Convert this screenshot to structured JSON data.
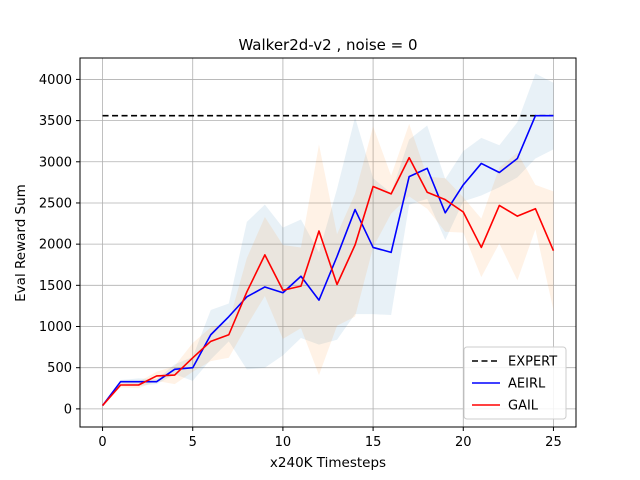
{
  "chart_data": {
    "type": "line",
    "title": "Walker2d-v2 , noise = 0",
    "xlabel": "x240K Timesteps",
    "ylabel": "Eval Reward Sum",
    "xlim": [
      -1.25,
      26.25
    ],
    "ylim": [
      -220,
      4260
    ],
    "xticks": [
      0,
      5,
      10,
      15,
      20,
      25
    ],
    "yticks": [
      0,
      500,
      1000,
      1500,
      2000,
      2500,
      3000,
      3500,
      4000
    ],
    "grid": true,
    "legend_position": "lower-right",
    "x": [
      0,
      1,
      2,
      3,
      4,
      5,
      6,
      7,
      8,
      9,
      10,
      11,
      12,
      13,
      14,
      15,
      16,
      17,
      18,
      19,
      20,
      21,
      22,
      23,
      24,
      25
    ],
    "series": [
      {
        "name": "EXPERT",
        "color": "#000000",
        "style": "dashed",
        "values": [
          3560,
          3560,
          3560,
          3560,
          3560,
          3560,
          3560,
          3560,
          3560,
          3560,
          3560,
          3560,
          3560,
          3560,
          3560,
          3560,
          3560,
          3560,
          3560,
          3560,
          3560,
          3560,
          3560,
          3560,
          3560,
          3560
        ]
      },
      {
        "name": "AEIRL",
        "color": "#0000ff",
        "fill_color": "#1f77b4",
        "style": "solid",
        "values": [
          40,
          330,
          330,
          330,
          480,
          500,
          900,
          1120,
          1360,
          1480,
          1410,
          1610,
          1320,
          1850,
          2420,
          1960,
          1900,
          2820,
          2920,
          2380,
          2720,
          2980,
          2870,
          3040,
          3560,
          3560
        ],
        "lower": [
          40,
          310,
          280,
          300,
          420,
          340,
          600,
          820,
          480,
          500,
          650,
          860,
          780,
          840,
          1150,
          1150,
          1140,
          2480,
          2550,
          2050,
          2520,
          2590,
          2690,
          2810,
          3040,
          3150
        ],
        "upper": [
          40,
          350,
          370,
          360,
          540,
          630,
          1200,
          1280,
          2270,
          2480,
          2200,
          2300,
          1900,
          2670,
          3540,
          2800,
          2620,
          3270,
          3440,
          2790,
          3130,
          3290,
          3200,
          3480,
          4070,
          3960
        ]
      },
      {
        "name": "GAIL",
        "color": "#ff0000",
        "fill_color": "#ff7f0e",
        "style": "solid",
        "values": [
          40,
          290,
          290,
          400,
          410,
          620,
          820,
          900,
          1420,
          1870,
          1440,
          1490,
          2160,
          1510,
          1990,
          2700,
          2610,
          3050,
          2630,
          2540,
          2390,
          1960,
          2470,
          2340,
          2430,
          1920
        ],
        "lower": [
          40,
          260,
          250,
          340,
          300,
          450,
          580,
          620,
          1010,
          1370,
          850,
          980,
          410,
          1010,
          1120,
          1960,
          2370,
          2580,
          2430,
          2150,
          2140,
          1600,
          2010,
          1560,
          2180,
          1200
        ],
        "upper": [
          40,
          320,
          330,
          450,
          520,
          800,
          990,
          1050,
          1830,
          2330,
          1990,
          1960,
          3210,
          2120,
          2610,
          3430,
          2830,
          3460,
          2820,
          2800,
          2570,
          2310,
          2930,
          3110,
          2720,
          2640
        ]
      }
    ]
  }
}
